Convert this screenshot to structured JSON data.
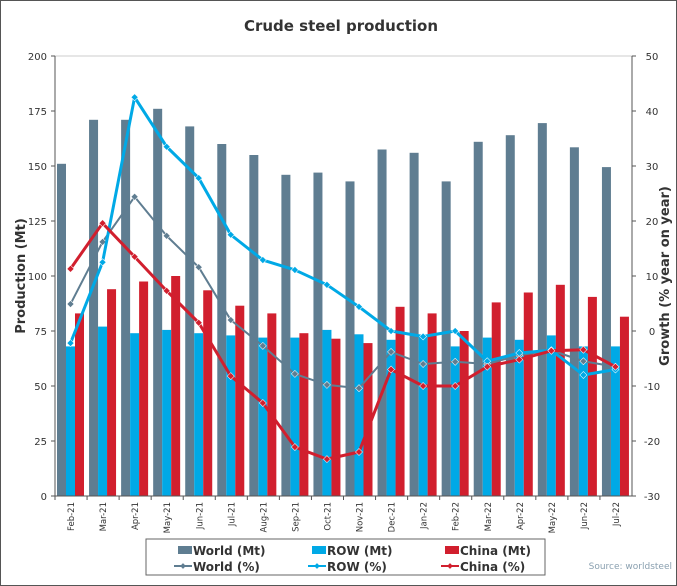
{
  "chart_data": {
    "type": "bar+line",
    "title": "Crude steel production",
    "ylabel": "Production (Mt)",
    "y2label": "Growth (% year on year)",
    "ylim": [
      0,
      200
    ],
    "y2lim": [
      -30,
      50
    ],
    "yticks": [
      0,
      25,
      50,
      75,
      100,
      125,
      150,
      175,
      200
    ],
    "y2ticks": [
      -30,
      -20,
      -10,
      0,
      10,
      20,
      30,
      40,
      50
    ],
    "grid": false,
    "legend_position": "bottom",
    "categories": [
      "Feb-21",
      "Mar-21",
      "Apr-21",
      "May-21",
      "Jun-21",
      "Jul-21",
      "Aug-21",
      "Sep-21",
      "Oct-21",
      "Nov-21",
      "Dec-21",
      "Jan-22",
      "Feb-22",
      "Mar-22",
      "Apr-22",
      "May-22",
      "Jun-22",
      "Jul-22"
    ],
    "bar_series": [
      {
        "name": "World (Mt)",
        "color": "#5f7d91",
        "values": [
          151,
          171,
          171,
          176,
          168,
          160,
          155,
          146,
          147,
          143,
          157.5,
          156,
          143,
          161,
          164,
          169.5,
          158.5,
          149.5
        ]
      },
      {
        "name": "ROW (Mt)",
        "color": "#00a9e6",
        "values": [
          68,
          77,
          74,
          75.5,
          74,
          73,
          72,
          72,
          75.5,
          73.5,
          71,
          73,
          68,
          72,
          71,
          73,
          68,
          68
        ]
      },
      {
        "name": "China (Mt)",
        "color": "#d11f2e",
        "values": [
          83,
          94,
          97.5,
          100,
          93.5,
          86.5,
          83,
          74,
          71.5,
          69.5,
          86,
          83,
          75,
          88,
          92.5,
          96,
          90.5,
          81.5
        ]
      }
    ],
    "line_series": [
      {
        "name": "World (%)",
        "color": "#5f7d91",
        "values": [
          4.9,
          16.2,
          24.4,
          17.3,
          11.6,
          2.0,
          -2.7,
          -7.8,
          -9.8,
          -10.4,
          -3.8,
          -6.0,
          -5.6,
          -6.0,
          -4.4,
          -3.5,
          -5.5,
          -6.5
        ]
      },
      {
        "name": "ROW (%)",
        "color": "#00a9e6",
        "values": [
          -2.2,
          12.5,
          42.5,
          33.5,
          27.8,
          17.5,
          12.9,
          11.1,
          8.4,
          4.4,
          0.0,
          -1.0,
          0.0,
          -5.5,
          -4.0,
          -3.5,
          -8.0,
          -7.0
        ]
      },
      {
        "name": "China (%)",
        "color": "#d11f2e",
        "values": [
          11.3,
          19.6,
          13.5,
          7.3,
          1.5,
          -8.2,
          -13.1,
          -21.1,
          -23.3,
          -22.0,
          -7.0,
          -10.0,
          -10.0,
          -6.5,
          -5.2,
          -3.6,
          -3.4,
          -6.5
        ]
      }
    ],
    "source": "Source: worldsteel"
  }
}
